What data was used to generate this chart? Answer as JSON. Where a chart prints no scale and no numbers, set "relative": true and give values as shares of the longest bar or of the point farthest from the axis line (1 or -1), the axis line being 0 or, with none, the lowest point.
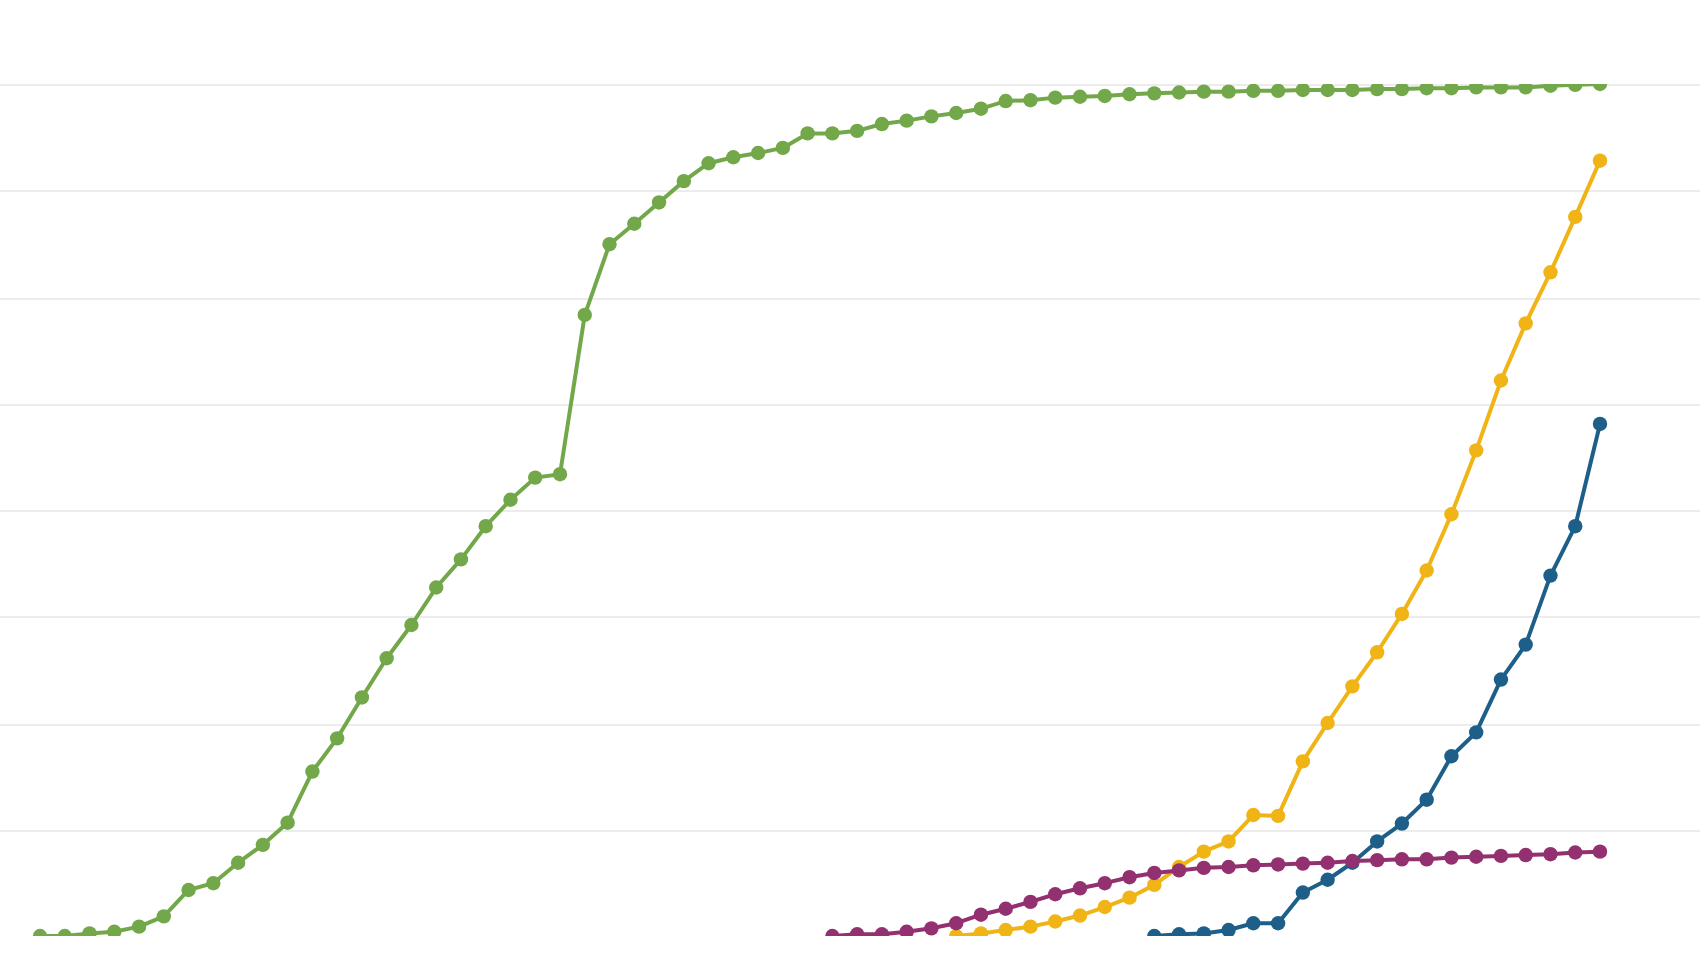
{
  "chart_data": {
    "type": "line",
    "relative": true,
    "grid": true,
    "tick_labels": false,
    "marker": "circle",
    "line_style": "solid",
    "categories": [
      null,
      null,
      null,
      null,
      null,
      null,
      null,
      null,
      null,
      null,
      null,
      null,
      null,
      null,
      null,
      null,
      null,
      null,
      null,
      null,
      null,
      null,
      null,
      null,
      null,
      null,
      null,
      null,
      null,
      null,
      null,
      null,
      null,
      null,
      null,
      null,
      null,
      null,
      null,
      null,
      null,
      null,
      null,
      null,
      null,
      null,
      null,
      null,
      null,
      null,
      null,
      null,
      null,
      null,
      null,
      null,
      null,
      null,
      null,
      null,
      null,
      null,
      null,
      null
    ],
    "series": [
      {
        "color": "#72a84a",
        "values": [
          0.0,
          0.0,
          0.003,
          0.005,
          0.011,
          0.023,
          0.054,
          0.062,
          0.086,
          0.107,
          0.133,
          0.193,
          0.232,
          0.28,
          0.326,
          0.365,
          0.409,
          0.442,
          0.481,
          0.512,
          0.538,
          0.542,
          0.729,
          0.812,
          0.836,
          0.861,
          0.886,
          0.907,
          0.914,
          0.919,
          0.925,
          0.942,
          0.942,
          0.945,
          0.953,
          0.957,
          0.962,
          0.966,
          0.971,
          0.98,
          0.981,
          0.984,
          0.985,
          0.986,
          0.988,
          0.989,
          0.99,
          0.991,
          0.991,
          0.992,
          0.992,
          0.993,
          0.993,
          0.993,
          0.994,
          0.994,
          0.995,
          0.995,
          0.996,
          0.996,
          0.996,
          0.998,
          0.999,
          1.0
        ]
      },
      {
        "color": "#93306f",
        "values": [
          null,
          null,
          null,
          null,
          null,
          null,
          null,
          null,
          null,
          null,
          null,
          null,
          null,
          null,
          null,
          null,
          null,
          null,
          null,
          null,
          null,
          null,
          null,
          null,
          null,
          null,
          null,
          null,
          null,
          null,
          null,
          null,
          0.0,
          0.002,
          0.002,
          0.005,
          0.009,
          0.015,
          0.025,
          0.032,
          0.04,
          0.049,
          0.056,
          0.062,
          0.069,
          0.074,
          0.077,
          0.08,
          0.081,
          0.083,
          0.084,
          0.085,
          0.086,
          0.088,
          0.089,
          0.09,
          0.09,
          0.092,
          0.093,
          0.094,
          0.095,
          0.096,
          0.098,
          0.099
        ]
      },
      {
        "color": "#f0b416",
        "values": [
          null,
          null,
          null,
          null,
          null,
          null,
          null,
          null,
          null,
          null,
          null,
          null,
          null,
          null,
          null,
          null,
          null,
          null,
          null,
          null,
          null,
          null,
          null,
          null,
          null,
          null,
          null,
          null,
          null,
          null,
          null,
          null,
          null,
          null,
          null,
          null,
          null,
          0.0,
          0.003,
          0.007,
          0.011,
          0.017,
          0.024,
          0.034,
          0.045,
          0.06,
          0.081,
          0.099,
          0.111,
          0.142,
          0.141,
          0.205,
          0.25,
          0.293,
          0.333,
          0.378,
          0.429,
          0.495,
          0.57,
          0.652,
          0.719,
          0.779,
          0.844,
          0.91
        ]
      },
      {
        "color": "#1e5f8a",
        "values": [
          null,
          null,
          null,
          null,
          null,
          null,
          null,
          null,
          null,
          null,
          null,
          null,
          null,
          null,
          null,
          null,
          null,
          null,
          null,
          null,
          null,
          null,
          null,
          null,
          null,
          null,
          null,
          null,
          null,
          null,
          null,
          null,
          null,
          null,
          null,
          null,
          null,
          null,
          null,
          null,
          null,
          null,
          null,
          null,
          null,
          0.0,
          0.002,
          0.003,
          0.007,
          0.015,
          0.015,
          0.051,
          0.066,
          0.086,
          0.111,
          0.132,
          0.16,
          0.211,
          0.239,
          0.301,
          0.342,
          0.423,
          0.481,
          0.601
        ]
      }
    ]
  }
}
